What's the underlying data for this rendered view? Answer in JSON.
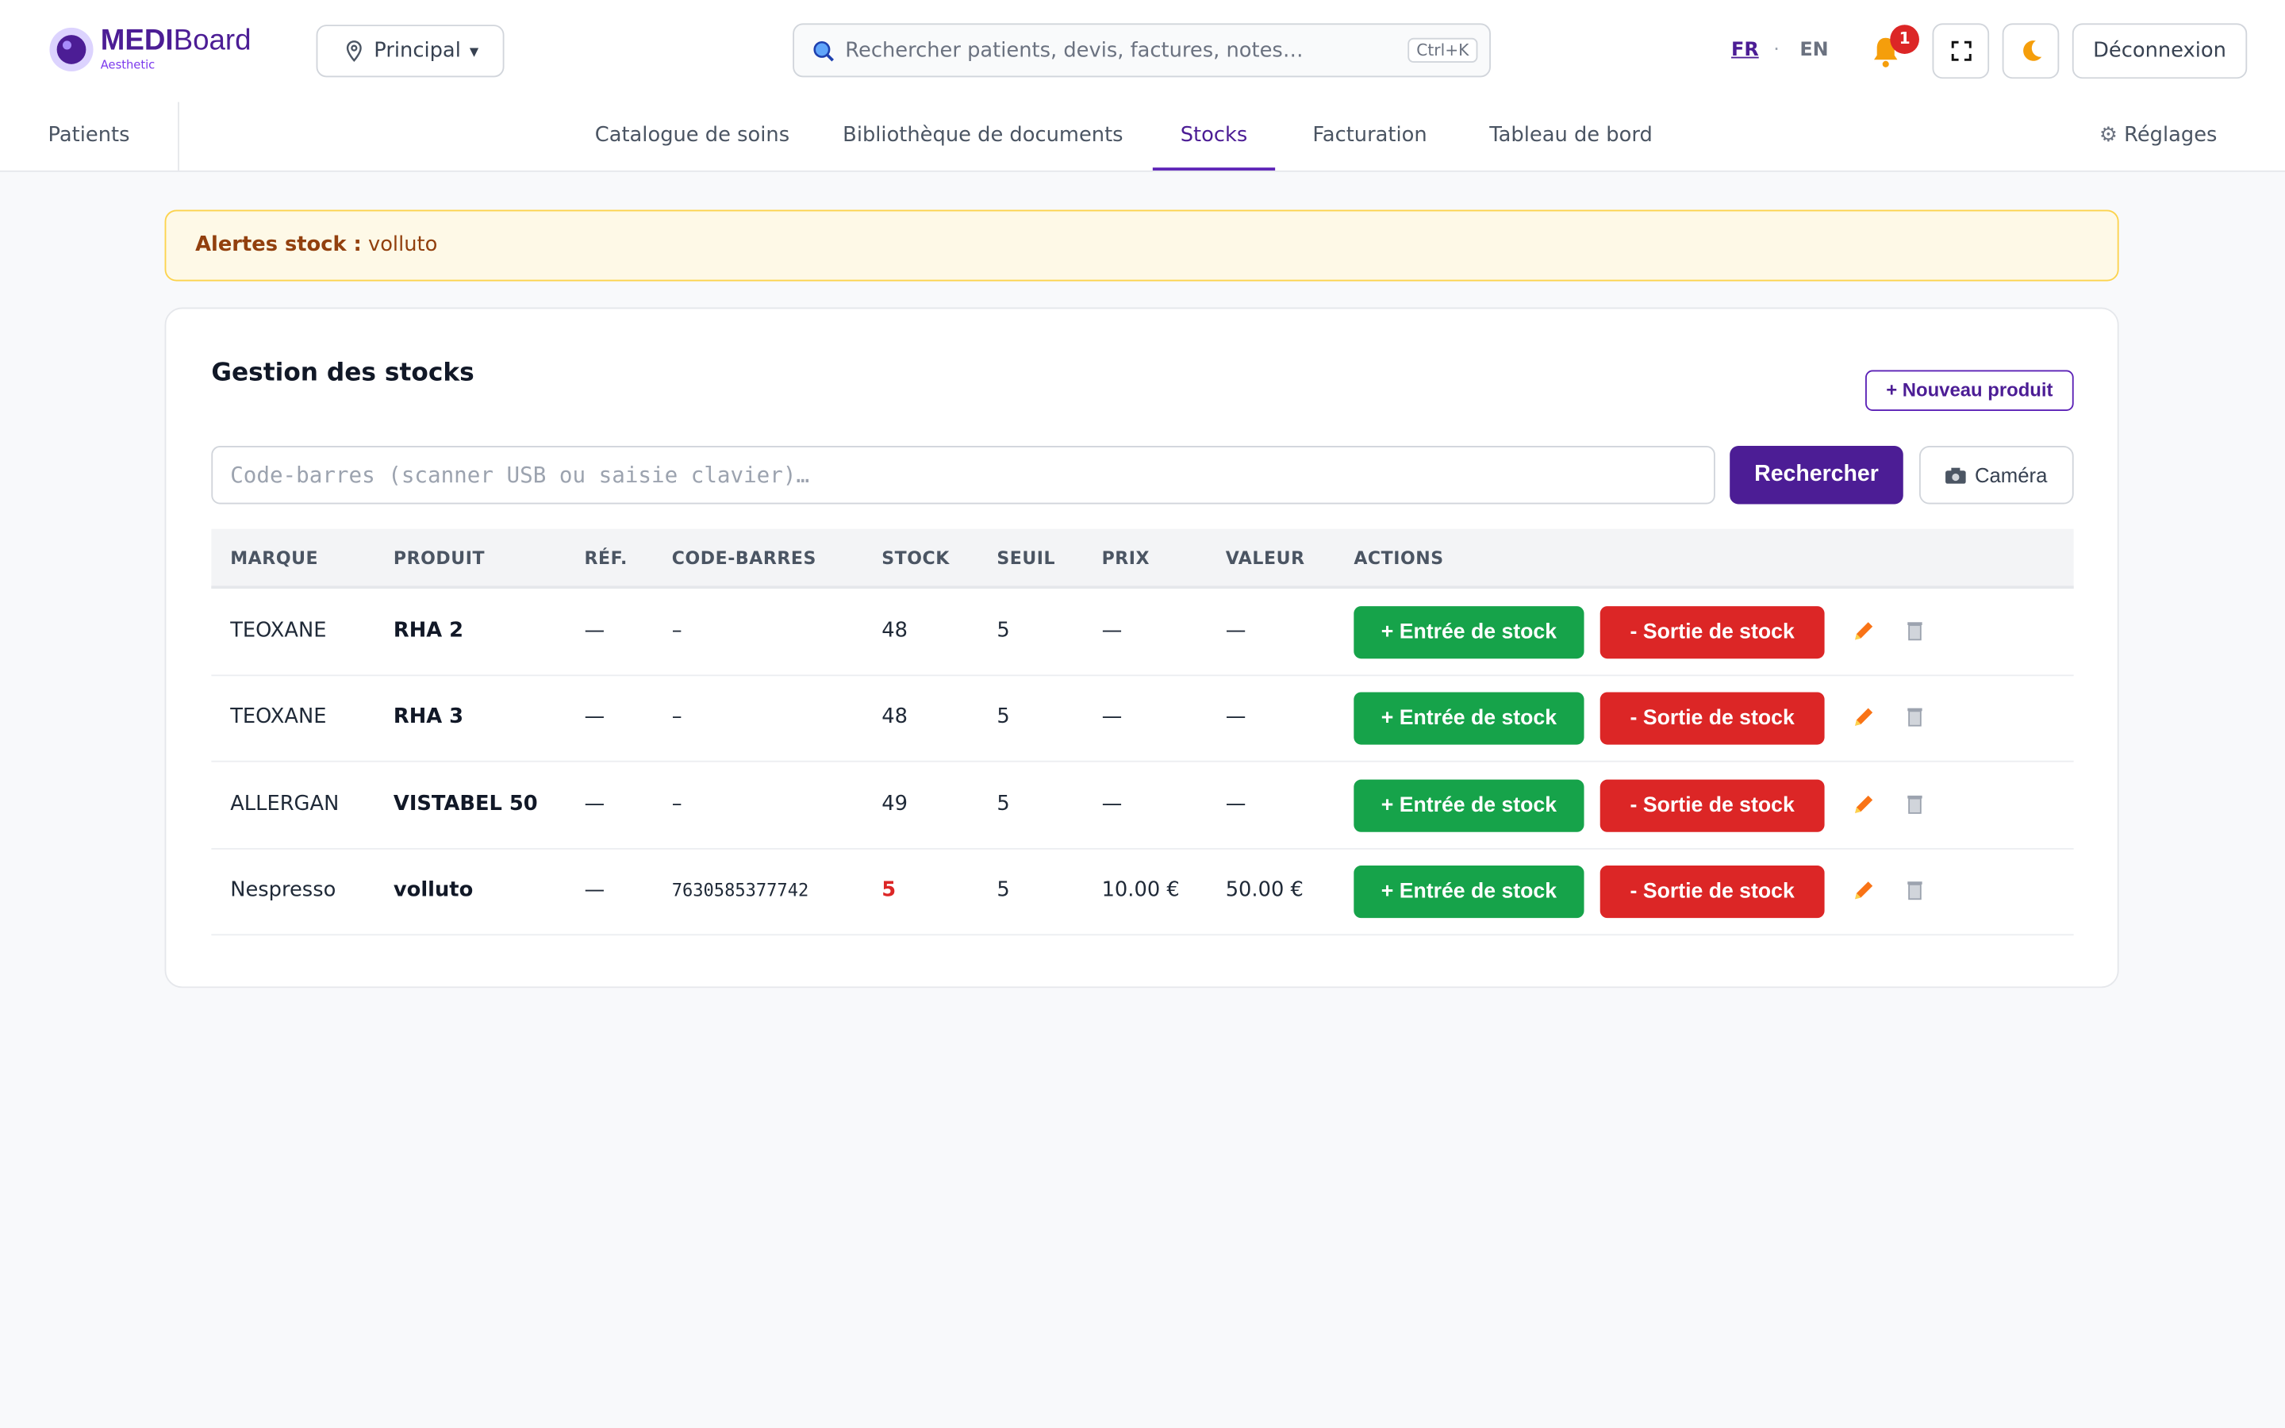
{
  "header": {
    "logo_main": "MEDI",
    "logo_rest": "Board",
    "logo_tagline": "Aesthetic",
    "location": "Principal",
    "search_placeholder": "Rechercher patients, devis, factures, notes…",
    "search_shortcut": "Ctrl+K",
    "lang_active": "FR",
    "lang_separator": "·",
    "lang_other": "EN",
    "notification_count": "1",
    "logout": "Déconnexion"
  },
  "nav": {
    "patients": "Patients",
    "tabs": [
      "Catalogue de soins",
      "Bibliothèque de documents",
      "Stocks",
      "Facturation",
      "Tableau de bord"
    ],
    "active_tab": 2,
    "settings": "Réglages"
  },
  "alert": {
    "label": "Alertes stock :",
    "text": "volluto"
  },
  "panel": {
    "title": "Gestion des stocks",
    "new_product": "+ Nouveau produit",
    "barcode_placeholder": "Code-barres (scanner USB ou saisie clavier)…",
    "search_button": "Rechercher",
    "camera": "Caméra"
  },
  "table": {
    "columns": [
      "MARQUE",
      "PRODUIT",
      "RÉF.",
      "CODE-BARRES",
      "STOCK",
      "SEUIL",
      "PRIX",
      "VALEUR",
      "ACTIONS"
    ],
    "stock_in": "+ Entrée de stock",
    "stock_out": "- Sortie de stock",
    "rows": [
      [
        "TEOXANE",
        "RHA 2",
        "—",
        "–",
        "48",
        "5",
        "—",
        "—"
      ],
      [
        "TEOXANE",
        "RHA 3",
        "—",
        "–",
        "48",
        "5",
        "—",
        "—"
      ],
      [
        "ALLERGAN",
        "VISTABEL 50",
        "—",
        "–",
        "49",
        "5",
        "—",
        "—"
      ],
      [
        "Nespresso",
        "volluto",
        "—",
        "7630585377742",
        "5",
        "5",
        "10.00 €",
        "50.00 €"
      ]
    ]
  }
}
